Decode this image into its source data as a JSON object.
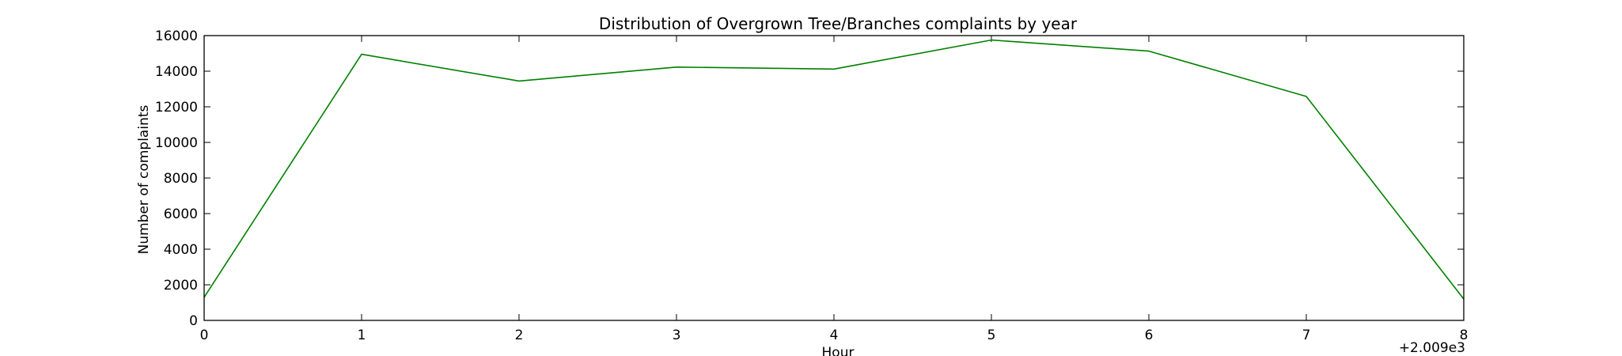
{
  "chart_data": {
    "type": "line",
    "title": "Distribution of  Overgrown Tree/Branches complaints by year",
    "xlabel": "Hour",
    "ylabel": "Number of complaints",
    "x_offset_label": "+2.009e3",
    "xlim": [
      0,
      8
    ],
    "ylim": [
      0,
      16000
    ],
    "x_ticks": [
      0,
      1,
      2,
      3,
      4,
      5,
      6,
      7,
      8
    ],
    "y_ticks": [
      0,
      2000,
      4000,
      6000,
      8000,
      10000,
      12000,
      14000,
      16000
    ],
    "grid": false,
    "series": [
      {
        "color": "#008000",
        "x": [
          0,
          1,
          2,
          3,
          4,
          5,
          6,
          7,
          8
        ],
        "y": [
          1300,
          14950,
          13450,
          14230,
          14120,
          15750,
          15130,
          12580,
          1200
        ]
      }
    ]
  }
}
